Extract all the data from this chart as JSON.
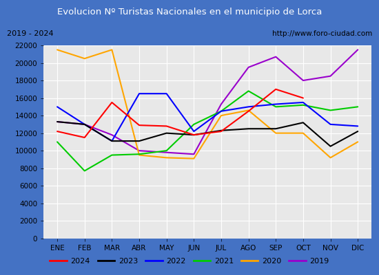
{
  "title": "Evolucion Nº Turistas Nacionales en el municipio de Lorca",
  "subtitle_left": "2019 - 2024",
  "subtitle_right": "http://www.foro-ciudad.com",
  "months": [
    "ENE",
    "FEB",
    "MAR",
    "ABR",
    "MAY",
    "JUN",
    "JUL",
    "AGO",
    "SEP",
    "OCT",
    "NOV",
    "DIC"
  ],
  "series": {
    "2024": [
      12200,
      11500,
      15500,
      12900,
      12800,
      11800,
      12200,
      14500,
      17000,
      16000,
      null,
      null
    ],
    "2023": [
      13300,
      13000,
      11100,
      11100,
      12000,
      11800,
      12300,
      12500,
      12500,
      13200,
      10500,
      12200
    ],
    "2022": [
      15000,
      13000,
      11100,
      16500,
      16500,
      12200,
      14500,
      15000,
      15300,
      15500,
      13000,
      12800
    ],
    "2021": [
      11000,
      7700,
      9500,
      9600,
      10000,
      13000,
      14500,
      16800,
      15000,
      15200,
      14600,
      15000
    ],
    "2020": [
      21500,
      20500,
      21500,
      9500,
      9200,
      9100,
      14000,
      14600,
      12000,
      12000,
      9200,
      11000
    ],
    "2019": [
      13300,
      13000,
      11800,
      10000,
      9800,
      9600,
      15300,
      19500,
      20700,
      18000,
      18500,
      21500
    ]
  },
  "colors": {
    "2024": "#ff0000",
    "2023": "#000000",
    "2022": "#0000ff",
    "2021": "#00cc00",
    "2020": "#ffa500",
    "2019": "#9900cc"
  },
  "ylim": [
    0,
    22000
  ],
  "yticks": [
    0,
    2000,
    4000,
    6000,
    8000,
    10000,
    12000,
    14000,
    16000,
    18000,
    20000,
    22000
  ],
  "title_bg_color": "#4472c4",
  "title_text_color": "#ffffff",
  "plot_bg_color": "#e8e8e8",
  "grid_color": "#ffffff",
  "border_color": "#4472c4",
  "subtitle_bg": "#e0e0e0",
  "fig_bg": "#d0d0d0"
}
